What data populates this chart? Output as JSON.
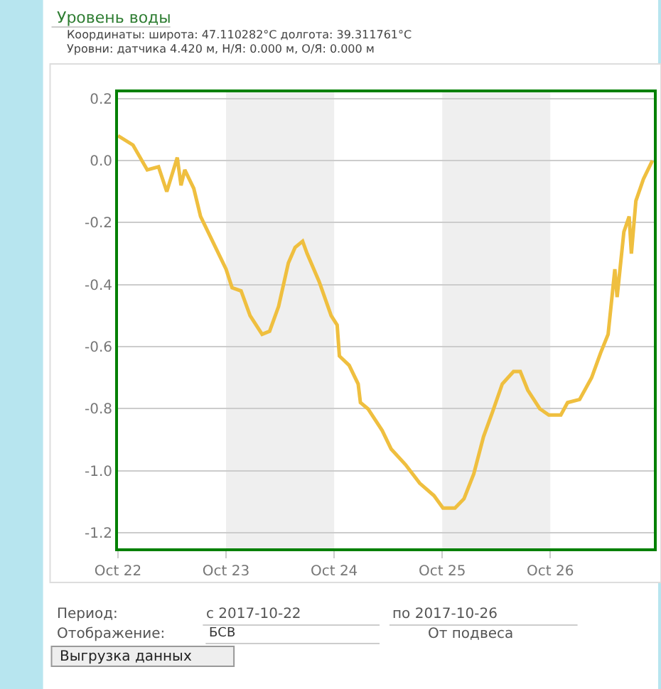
{
  "chart_data": {
    "type": "line",
    "annotations": [
      "Уровень воды",
      "Координаты: широта: 47.110282°C долгота: 39.311761°C",
      "Уровни: датчика 4.420 м, Н/Я: 0.000 м, О/Я: 0.000 м",
      "Период:",
      "с 2017-10-22",
      "по 2017-10-26",
      "Отображение:",
      "БСВ",
      "От подвеса",
      "Выгрузка данных"
    ],
    "series": [
      {
        "color": "#efbf3f",
        "x": [
          "2017-10-22T00:00",
          "2017-10-22T03:20",
          "2017-10-22T06:30",
          "2017-10-22T09:00",
          "2017-10-22T10:50",
          "2017-10-22T13:10",
          "2017-10-22T14:00",
          "2017-10-22T14:50",
          "2017-10-22T16:50",
          "2017-10-22T18:20",
          "2017-10-22T21:00",
          "2017-10-23T00:00",
          "2017-10-23T01:20",
          "2017-10-23T03:20",
          "2017-10-23T05:20",
          "2017-10-23T08:00",
          "2017-10-23T09:40",
          "2017-10-23T11:40",
          "2017-10-23T13:50",
          "2017-10-23T15:20",
          "2017-10-23T17:00",
          "2017-10-23T18:00",
          "2017-10-23T20:40",
          "2017-10-23T23:20",
          "2017-10-24T00:40",
          "2017-10-24T01:10",
          "2017-10-24T03:20",
          "2017-10-24T05:20",
          "2017-10-24T05:50",
          "2017-10-24T07:30",
          "2017-10-24T10:40",
          "2017-10-24T12:40",
          "2017-10-24T15:50",
          "2017-10-24T19:00",
          "2017-10-24T22:10",
          "2017-10-25T00:10",
          "2017-10-25T02:50",
          "2017-10-25T04:50",
          "2017-10-25T07:00",
          "2017-10-25T09:10",
          "2017-10-25T11:10",
          "2017-10-25T13:20",
          "2017-10-25T15:50",
          "2017-10-25T17:20",
          "2017-10-25T19:00",
          "2017-10-25T21:40",
          "2017-10-25T23:40",
          "2017-10-26T02:20",
          "2017-10-26T03:50",
          "2017-10-26T06:30",
          "2017-10-26T09:10",
          "2017-10-26T11:10",
          "2017-10-26T12:50",
          "2017-10-26T14:20",
          "2017-10-26T14:50",
          "2017-10-26T16:20",
          "2017-10-26T17:30",
          "2017-10-26T18:00",
          "2017-10-26T19:00",
          "2017-10-26T20:40",
          "2017-10-26T22:40"
        ],
        "values": [
          0.08,
          0.05,
          -0.03,
          -0.02,
          -0.1,
          0.01,
          -0.08,
          -0.03,
          -0.09,
          -0.18,
          -0.26,
          -0.35,
          -0.41,
          -0.42,
          -0.5,
          -0.56,
          -0.55,
          -0.47,
          -0.33,
          -0.28,
          -0.26,
          -0.3,
          -0.39,
          -0.5,
          -0.53,
          -0.63,
          -0.66,
          -0.72,
          -0.78,
          -0.8,
          -0.87,
          -0.93,
          -0.98,
          -1.04,
          -1.08,
          -1.12,
          -1.12,
          -1.09,
          -1.01,
          -0.89,
          -0.81,
          -0.72,
          -0.68,
          -0.68,
          -0.74,
          -0.8,
          -0.82,
          -0.82,
          -0.78,
          -0.77,
          -0.7,
          -0.62,
          -0.56,
          -0.35,
          -0.44,
          -0.23,
          -0.18,
          -0.3,
          -0.13,
          -0.06,
          0.0
        ]
      }
    ],
    "xlim": [
      "2017-10-22",
      "2017-10-26T23:00"
    ],
    "xticks": [
      {
        "value": "2017-10-22",
        "label": "Oct 22"
      },
      {
        "value": "2017-10-23",
        "label": "Oct 23"
      },
      {
        "value": "2017-10-24",
        "label": "Oct 24"
      },
      {
        "value": "2017-10-25",
        "label": "Oct 25"
      },
      {
        "value": "2017-10-26",
        "label": "Oct 26"
      }
    ],
    "ylim": [
      -1.25,
      0.22
    ],
    "yticks": [
      0.2,
      {
        "value": 0,
        "label": "0.0"
      },
      -0.2,
      -0.4,
      -0.6,
      -0.8,
      {
        "value": -1,
        "label": "-1.0"
      },
      -1.2
    ],
    "bands": [
      {
        "axis": "x",
        "from": "2017-10-23",
        "to": "2017-10-24",
        "color": "#efefef"
      },
      {
        "axis": "x",
        "from": "2017-10-25",
        "to": "2017-10-26",
        "color": "#efefef"
      }
    ],
    "grid": "y",
    "marker": "none",
    "line_style": "solid"
  }
}
